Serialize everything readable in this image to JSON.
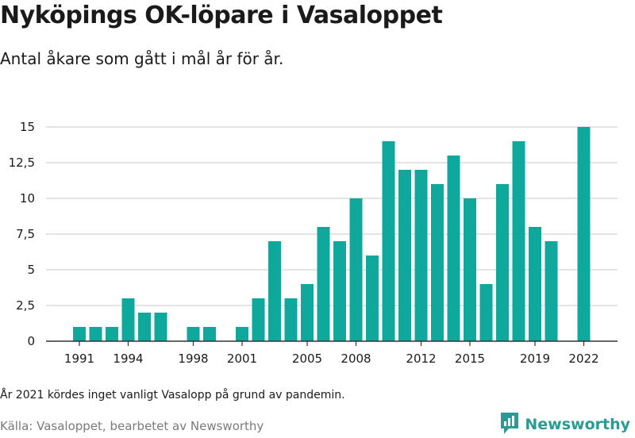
{
  "title": "Nyköpings OK-löpare i Vasaloppet",
  "subtitle": "Antal åkare som gått i mål år för år.",
  "note": "År 2021 kördes inget vanligt Vasalopp på grund av pandemin.",
  "source": "Källa: Vasaloppet, bearbetet av Newsworthy",
  "brand": {
    "name": "Newsworthy",
    "icon": "newsworthy-logo-icon"
  },
  "colors": {
    "bar": "#0fa89c",
    "grid": "#dcdcdc",
    "axis": "#333333"
  },
  "chart_data": {
    "type": "bar",
    "x": [
      1991,
      1992,
      1993,
      1994,
      1995,
      1996,
      1997,
      1998,
      1999,
      2000,
      2001,
      2002,
      2003,
      2004,
      2005,
      2006,
      2007,
      2008,
      2009,
      2010,
      2011,
      2012,
      2013,
      2014,
      2015,
      2016,
      2017,
      2018,
      2019,
      2020,
      2021,
      2022
    ],
    "values": [
      1,
      1,
      1,
      3,
      2,
      2,
      0,
      1,
      1,
      0,
      1,
      3,
      7,
      3,
      4,
      8,
      7,
      10,
      6,
      14,
      12,
      12,
      11,
      13,
      10,
      4,
      11,
      14,
      8,
      7,
      0,
      15
    ],
    "x_ticks": [
      "1991",
      "1994",
      "1998",
      "2001",
      "2005",
      "2008",
      "2012",
      "2015",
      "2019",
      "2022"
    ],
    "y_ticks": [
      "0",
      "2,5",
      "5",
      "7,5",
      "10",
      "12,5",
      "15"
    ],
    "y_tick_values": [
      0,
      2.5,
      5,
      7.5,
      10,
      12.5,
      15
    ],
    "ylim": [
      0,
      15
    ],
    "grid": true,
    "legend": "none"
  }
}
